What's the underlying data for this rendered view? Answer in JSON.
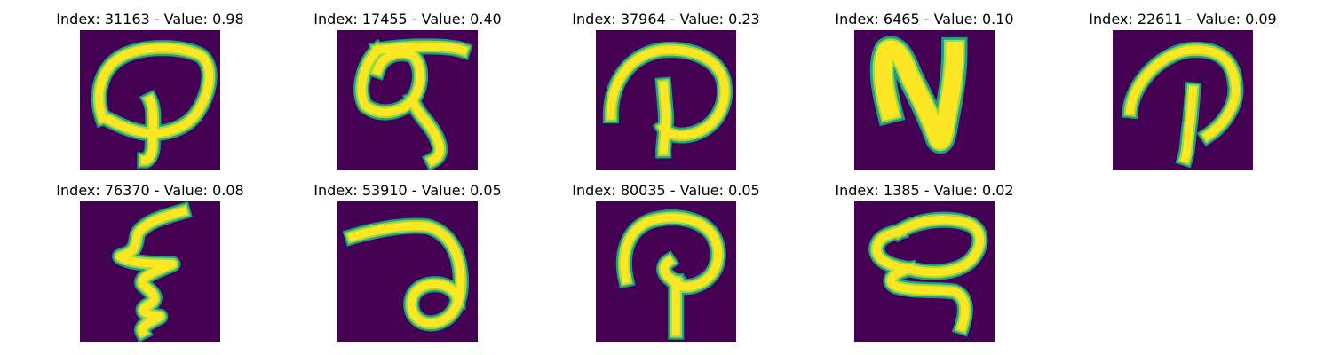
{
  "colors": {
    "background": "#440154",
    "stroke_core": "#fde725",
    "stroke_mid": "#a0da39",
    "stroke_edge": "#1f9e89"
  },
  "items": [
    {
      "title": "Index: 31163 - Value: 0.98",
      "glyph": "glyph-p-loop-icon"
    },
    {
      "title": "Index: 17455 - Value: 0.40",
      "glyph": "glyph-q-loop-icon"
    },
    {
      "title": "Index: 37964 - Value: 0.23",
      "glyph": "glyph-arch-stem-icon"
    },
    {
      "title": "Index: 6465 - Value: 0.10",
      "glyph": "glyph-n-shape-icon"
    },
    {
      "title": "Index: 22611 - Value: 0.09",
      "glyph": "glyph-arch-stem-icon"
    },
    {
      "title": "Index: 76370 - Value: 0.08",
      "glyph": "glyph-zigzag-icon"
    },
    {
      "title": "Index: 53910 - Value: 0.05",
      "glyph": "glyph-curl-icon"
    },
    {
      "title": "Index: 80035 - Value: 0.05",
      "glyph": "glyph-arch-stem-icon"
    },
    {
      "title": "Index: 1385 - Value: 0.02",
      "glyph": "glyph-loop-tail-icon"
    }
  ]
}
